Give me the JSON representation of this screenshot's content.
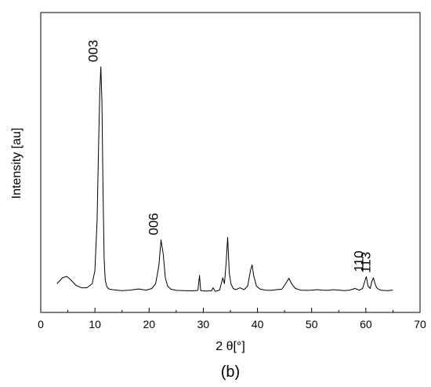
{
  "chart_data": {
    "type": "line",
    "title": "",
    "caption": "(b)",
    "xlabel": "2 θ[°]",
    "ylabel": "Intensity [au]",
    "xlim": [
      0,
      70
    ],
    "ylim": [
      0,
      100
    ],
    "x_ticks": [
      "0",
      "10",
      "20",
      "30",
      "40",
      "50",
      "60",
      "70"
    ],
    "y_ticks_shown": false,
    "grid": false,
    "legend": "none",
    "line_color": "#000000",
    "series": [
      {
        "x": [
          3.0,
          4.0,
          4.8,
          5.5,
          6.5,
          7.5,
          8.5,
          9.5,
          10.0,
          10.4,
          10.7,
          10.9,
          11.1,
          11.3,
          11.5,
          11.7,
          11.9,
          12.2,
          12.6,
          13.2,
          14.0,
          15.0,
          16.5,
          18.0,
          19.5,
          20.5,
          21.2,
          21.8,
          22.2,
          22.6,
          23.0,
          23.4,
          24.0,
          25.0,
          26.5,
          28.0,
          29.0,
          29.3,
          29.5,
          29.8,
          30.5,
          31.5,
          31.8,
          32.2,
          33.0,
          33.6,
          33.9,
          34.2,
          34.5,
          34.8,
          35.1,
          35.5,
          36.0,
          36.8,
          37.5,
          38.2,
          38.7,
          39.0,
          39.3,
          39.8,
          40.5,
          41.5,
          42.5,
          43.5,
          44.5,
          45.2,
          45.8,
          46.3,
          47.0,
          48.0,
          49.0,
          50.0,
          51.0,
          52.0,
          53.0,
          54.0,
          55.0,
          56.0,
          57.0,
          58.0,
          58.8,
          59.4,
          59.8,
          60.1,
          60.4,
          60.8,
          61.1,
          61.4,
          61.7,
          62.0,
          62.5,
          63.0,
          64.0,
          65.0
        ],
        "y": [
          3.5,
          6.0,
          6.6,
          5.3,
          2.8,
          1.8,
          1.8,
          3.5,
          9.0,
          30.0,
          65.0,
          85.0,
          95.0,
          80.0,
          42.0,
          14.0,
          5.0,
          2.2,
          1.3,
          1.0,
          0.8,
          0.6,
          0.8,
          1.3,
          0.8,
          1.5,
          3.5,
          11.0,
          22.0,
          16.0,
          6.0,
          2.5,
          1.2,
          0.7,
          0.6,
          0.5,
          0.7,
          7.0,
          0.7,
          0.5,
          0.4,
          0.5,
          1.8,
          0.3,
          0.8,
          6.0,
          3.5,
          12.0,
          23.0,
          8.0,
          3.5,
          1.5,
          1.0,
          1.8,
          1.0,
          2.5,
          9.0,
          11.5,
          7.0,
          2.5,
          1.2,
          0.8,
          0.7,
          1.0,
          1.2,
          3.5,
          5.8,
          3.5,
          1.5,
          0.8,
          0.7,
          0.8,
          1.0,
          0.8,
          0.7,
          1.0,
          0.8,
          0.6,
          0.8,
          1.5,
          0.8,
          1.5,
          4.5,
          6.5,
          2.5,
          1.5,
          4.5,
          6.0,
          3.5,
          1.8,
          1.0,
          0.7,
          0.6,
          0.8
        ]
      }
    ],
    "annotations": [
      {
        "text": "003",
        "x": 11.1,
        "y": 95.0
      },
      {
        "text": "006",
        "x": 22.2,
        "y": 22.0
      },
      {
        "text": "110",
        "x": 60.1,
        "y": 6.5
      },
      {
        "text": "113",
        "x": 61.4,
        "y": 6.0
      }
    ]
  }
}
